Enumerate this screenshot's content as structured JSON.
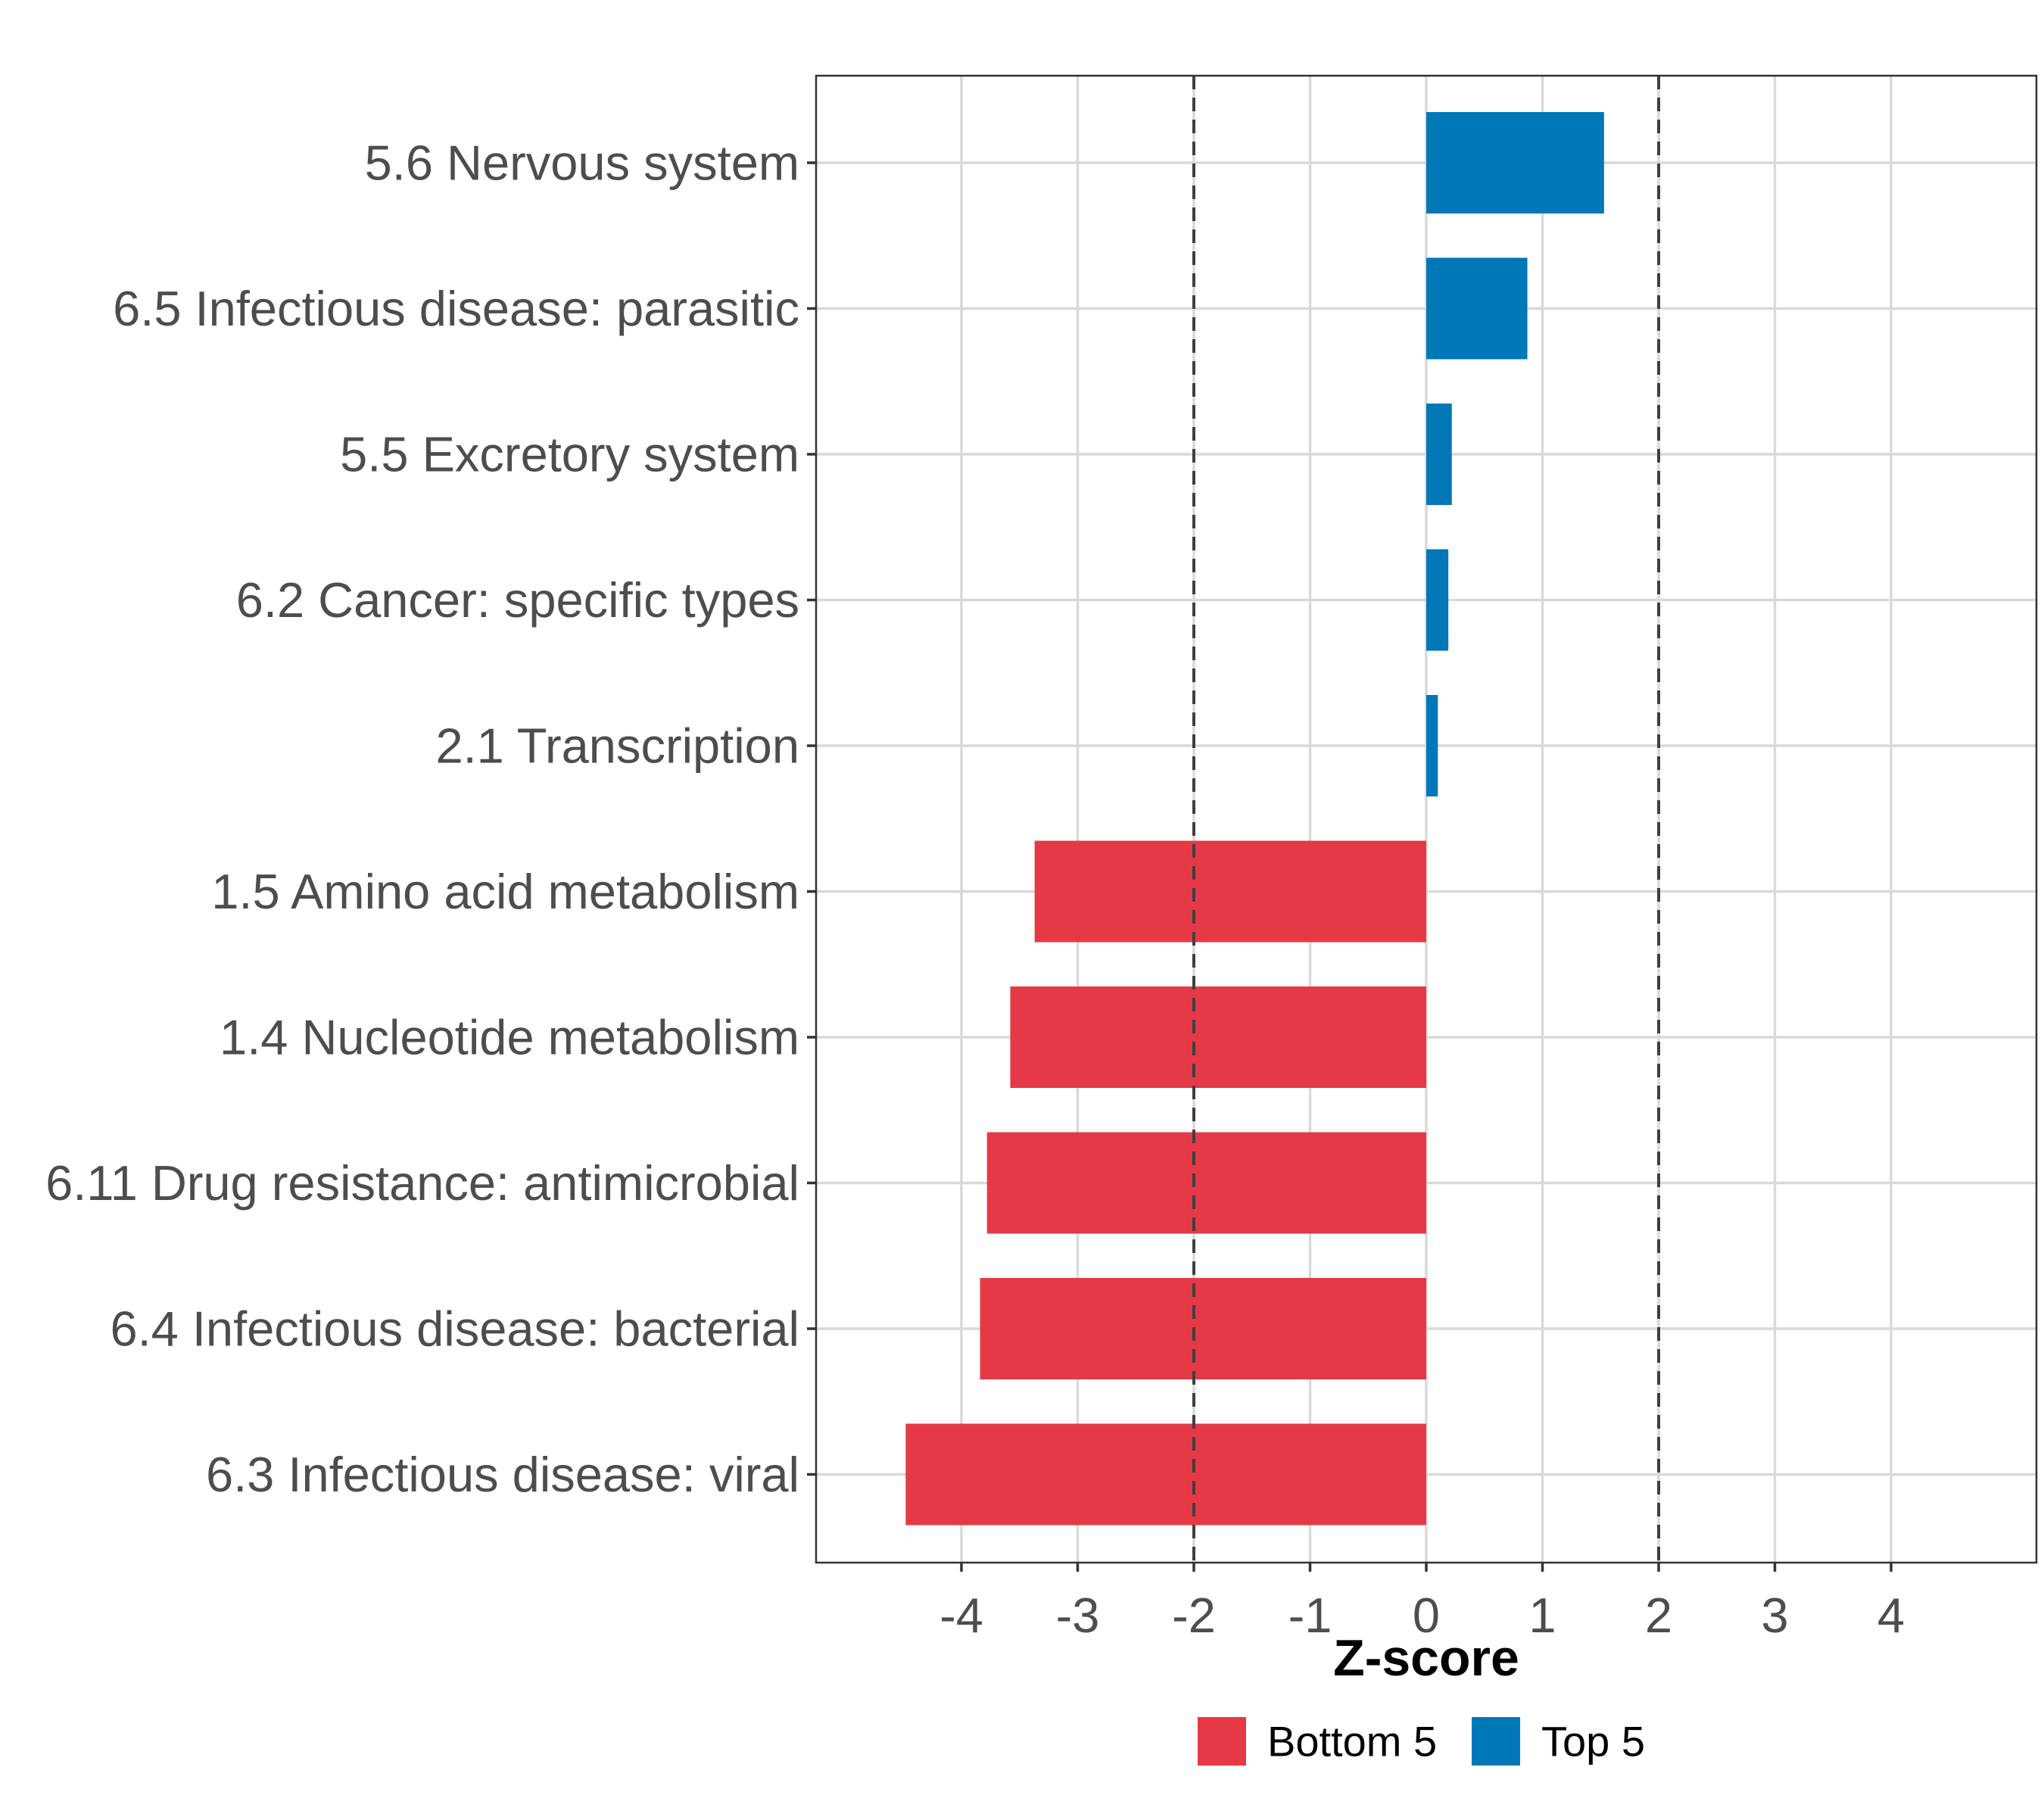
{
  "chart_data": {
    "type": "bar",
    "orientation": "horizontal",
    "title": "",
    "xlabel": "Z-score",
    "ylabel": "",
    "xlim": [
      -5.25,
      5.25
    ],
    "x_ticks": [
      -4,
      -3,
      -2,
      -1,
      0,
      1,
      2,
      3,
      4
    ],
    "reference_lines": [
      -2,
      2
    ],
    "grid": true,
    "legend_position": "bottom",
    "categories": [
      "5.6 Nervous system",
      "6.5 Infectious disease: parasitic",
      "5.5 Excretory system",
      "6.2 Cancer: specific types",
      "2.1 Transcription",
      "1.5 Amino acid metabolism",
      "1.4 Nucleotide metabolism",
      "6.11 Drug resistance: antimicrobial",
      "6.4 Infectious disease: bacterial",
      "6.3 Infectious disease: viral"
    ],
    "values": [
      1.53,
      0.87,
      0.22,
      0.19,
      0.1,
      -3.37,
      -3.58,
      -3.78,
      -3.84,
      -4.48
    ],
    "groups": [
      "Top 5",
      "Top 5",
      "Top 5",
      "Top 5",
      "Top 5",
      "Bottom 5",
      "Bottom 5",
      "Bottom 5",
      "Bottom 5",
      "Bottom 5"
    ],
    "legend": [
      {
        "name": "Bottom 5",
        "color": "#e63946"
      },
      {
        "name": "Top 5",
        "color": "#0077b6"
      }
    ]
  }
}
